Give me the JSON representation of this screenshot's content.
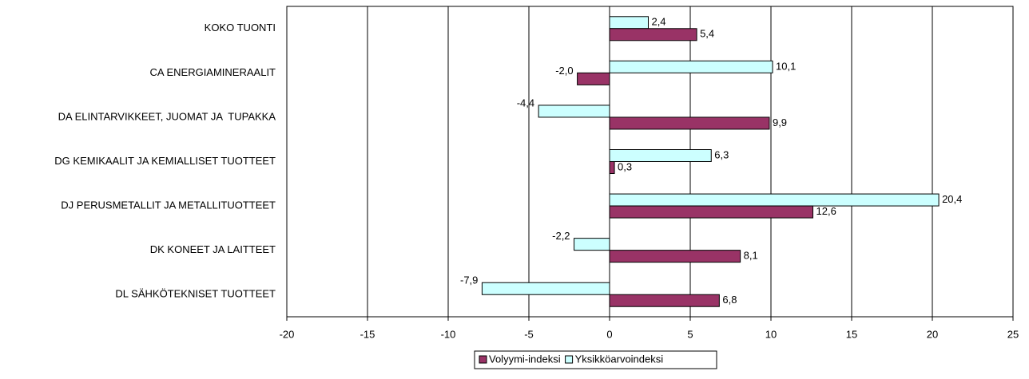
{
  "chart_data": {
    "type": "barh",
    "categories": [
      "KOKO TUONTI",
      "CA ENERGIAMINERAALIT",
      "DA ELINTARVIKKEET, JUOMAT JA  TUPAKKA",
      "DG KEMIKAALIT JA KEMIALLISET TUOTTEET",
      "DJ PERUSMETALLIT JA METALLITUOTTEET",
      "DK KONEET JA LAITTEET",
      "DL SÄHKÖTEKNISET TUOTTEET"
    ],
    "series": [
      {
        "name": "Volyymi-indeksi",
        "color": "#993366",
        "values": [
          5.4,
          -2.0,
          9.9,
          0.3,
          12.6,
          8.1,
          6.8
        ],
        "value_labels": [
          "5,4",
          "-2,0",
          "9,9",
          "0,3",
          "12,6",
          "8,1",
          "6,8"
        ]
      },
      {
        "name": "Yksikköarvoindeksi",
        "color": "#ccffff",
        "values": [
          2.4,
          10.1,
          -4.4,
          6.3,
          20.4,
          -2.2,
          -7.9
        ],
        "value_labels": [
          "2,4",
          "10,1",
          "-4,4",
          "6,3",
          "20,4",
          "-2,2",
          "-7,9"
        ]
      }
    ],
    "xlim": [
      -20,
      25
    ],
    "xticks": [
      -20,
      -15,
      -10,
      -5,
      0,
      5,
      10,
      15,
      20,
      25
    ],
    "grid": true,
    "legend": "bottom"
  }
}
